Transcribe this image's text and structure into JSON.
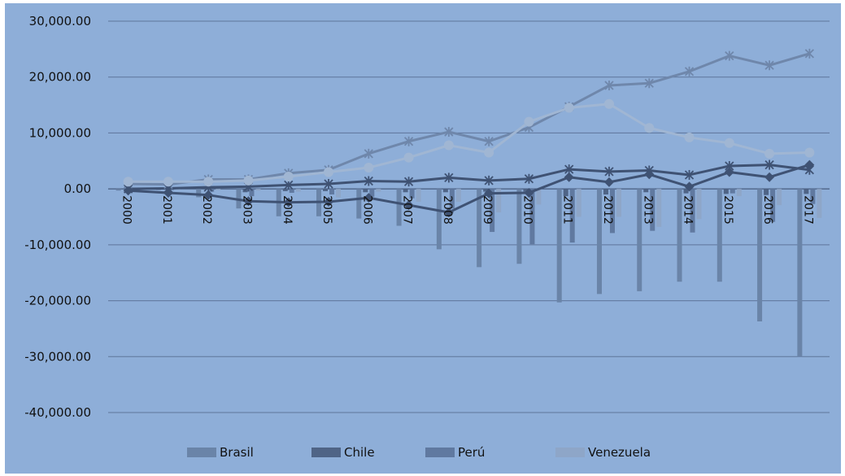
{
  "chart_data": {
    "type": "bar",
    "title": "",
    "xlabel": "",
    "ylabel": "",
    "ylim": [
      -40000,
      30000
    ],
    "y_ticks": [
      "30,000.00",
      "20,000.00",
      "10,000.00",
      "0.00",
      "-10,000.00",
      "-20,000.00",
      "-30,000.00",
      "-40,000.00"
    ],
    "y_tick_values": [
      30000,
      20000,
      10000,
      0,
      -10000,
      -20000,
      -30000,
      -40000
    ],
    "grid": true,
    "legend_position": "bottom",
    "categories": [
      "2000",
      "2001",
      "2002",
      "2003",
      "2004",
      "2005",
      "2006",
      "2007",
      "2008",
      "2009",
      "2010",
      "2011",
      "2012",
      "2013",
      "2014",
      "2015",
      "2016",
      "2017"
    ],
    "bar_series": [
      {
        "name": "Brasil",
        "color": "#6a84a8",
        "values": [
          -300,
          -200,
          -1500,
          -3500,
          -4900,
          -4900,
          -5300,
          -6600,
          -10800,
          -14000,
          -13400,
          -20300,
          -18800,
          -18300,
          -16600,
          -16600,
          -23700,
          -30000
        ]
      },
      {
        "name": "Chile",
        "color": "#4f6486",
        "values": [
          -100,
          0,
          -100,
          -600,
          -400,
          -400,
          -600,
          -600,
          -600,
          -500,
          -500,
          -1300,
          -1000,
          -600,
          -800,
          -900,
          -1100,
          -900
        ]
      },
      {
        "name": "Perú",
        "color": "#6079a0",
        "values": [
          -200,
          -200,
          -500,
          -1300,
          -700,
          -1000,
          -1400,
          -1700,
          -3500,
          -7700,
          -9900,
          -9600,
          -7900,
          -7500,
          -7800,
          -800,
          -5900,
          -2700
        ]
      },
      {
        "name": "Venezuela",
        "color": "#8ea6c8",
        "values": [
          -100,
          -100,
          -200,
          -300,
          -500,
          -1500,
          -500,
          -2300,
          -2300,
          -4200,
          -2800,
          -5000,
          -5000,
          -6800,
          -5400,
          -1300,
          -2900,
          -5200
        ]
      }
    ],
    "line_series": [
      {
        "color": "#6f87ab",
        "marker": "star",
        "values": [
          900,
          800,
          1700,
          1700,
          2800,
          3400,
          6300,
          8500,
          10200,
          8500,
          11000,
          14700,
          18500,
          18900,
          21000,
          23800,
          22100,
          24200
        ]
      },
      {
        "color": "#3f5273",
        "marker": "diamond",
        "values": [
          -300,
          -700,
          -1100,
          -2200,
          -2400,
          -2300,
          -1600,
          -2900,
          -4200,
          -800,
          -700,
          2100,
          1200,
          2600,
          400,
          3000,
          2100,
          4300
        ]
      },
      {
        "color": "#3f5273",
        "marker": "star",
        "values": [
          0,
          100,
          300,
          400,
          700,
          900,
          1400,
          1300,
          2000,
          1500,
          1800,
          3500,
          3100,
          3300,
          2500,
          4100,
          4300,
          3400
        ]
      },
      {
        "color": "#a0b6d3",
        "marker": "circle",
        "values": [
          1300,
          1300,
          1300,
          1500,
          2200,
          3000,
          3800,
          5600,
          7800,
          6500,
          12000,
          14500,
          15200,
          10900,
          9200,
          8200,
          6300,
          6500
        ]
      }
    ]
  }
}
